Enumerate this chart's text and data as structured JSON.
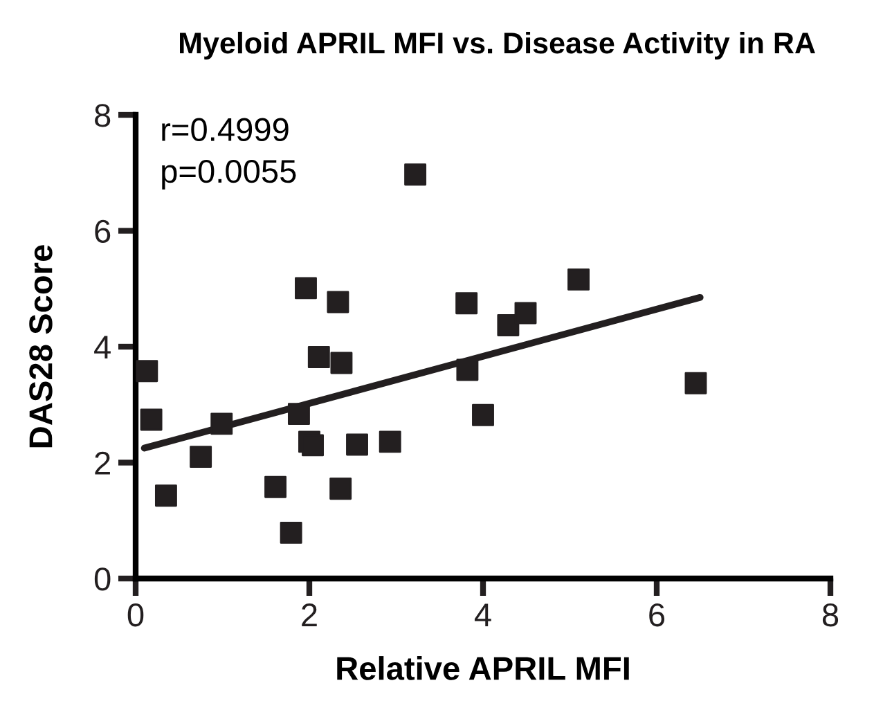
{
  "chart_data": {
    "type": "scatter",
    "title": "Myeloid APRIL MFI vs. Disease Activity in RA",
    "xlabel": "Relative APRIL MFI",
    "ylabel": "DAS28 Score",
    "annotations": [
      "r=0.4999",
      "p=0.0055"
    ],
    "xlim": [
      0,
      8
    ],
    "xticks": [
      0,
      2,
      4,
      6,
      8
    ],
    "ylim": [
      0,
      8
    ],
    "yticks": [
      0,
      2,
      4,
      6,
      8
    ],
    "grid": false,
    "legend": false,
    "marker": "square",
    "series": [
      {
        "color": "#231f20",
        "x": [
          0.13,
          0.18,
          0.35,
          0.75,
          0.99,
          1.61,
          1.79,
          1.88,
          1.96,
          2.0,
          2.04,
          2.11,
          2.33,
          2.36,
          2.37,
          2.55,
          2.93,
          3.22,
          3.81,
          3.82,
          4.0,
          4.29,
          4.49,
          5.1,
          6.45
        ],
        "values": [
          3.58,
          2.74,
          1.43,
          2.1,
          2.67,
          1.58,
          0.79,
          2.84,
          5.01,
          2.36,
          2.3,
          3.82,
          4.77,
          1.55,
          3.72,
          2.31,
          2.36,
          6.97,
          4.75,
          3.6,
          2.82,
          4.37,
          4.58,
          5.16,
          3.37
        ]
      },
      {
        "type": "line",
        "color": "#231f20",
        "x": [
          0.1,
          6.5
        ],
        "values": [
          2.25,
          4.85
        ],
        "line_style": "solid",
        "marker": "none"
      }
    ]
  }
}
